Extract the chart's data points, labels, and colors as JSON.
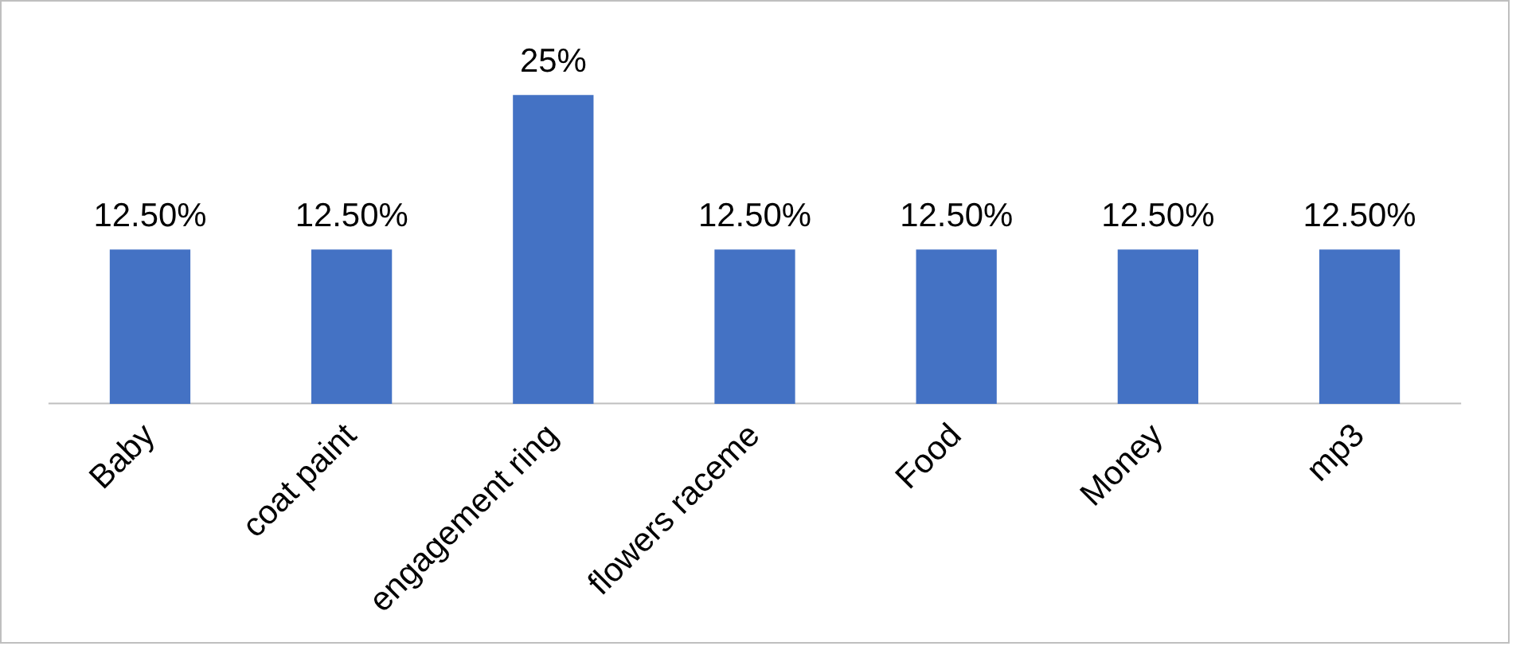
{
  "chart_data": {
    "type": "bar",
    "categories": [
      "Baby",
      "coat paint",
      "engagement ring",
      "flowers raceme",
      "Food",
      "Money",
      "mp3"
    ],
    "values": [
      12.5,
      12.5,
      25,
      12.5,
      12.5,
      12.5,
      12.5
    ],
    "value_labels": [
      "12.50%",
      "12.50%",
      "25%",
      "12.50%",
      "12.50%",
      "12.50%",
      "12.50%"
    ],
    "color": "#4472c4",
    "tick_labels": "x"
  }
}
